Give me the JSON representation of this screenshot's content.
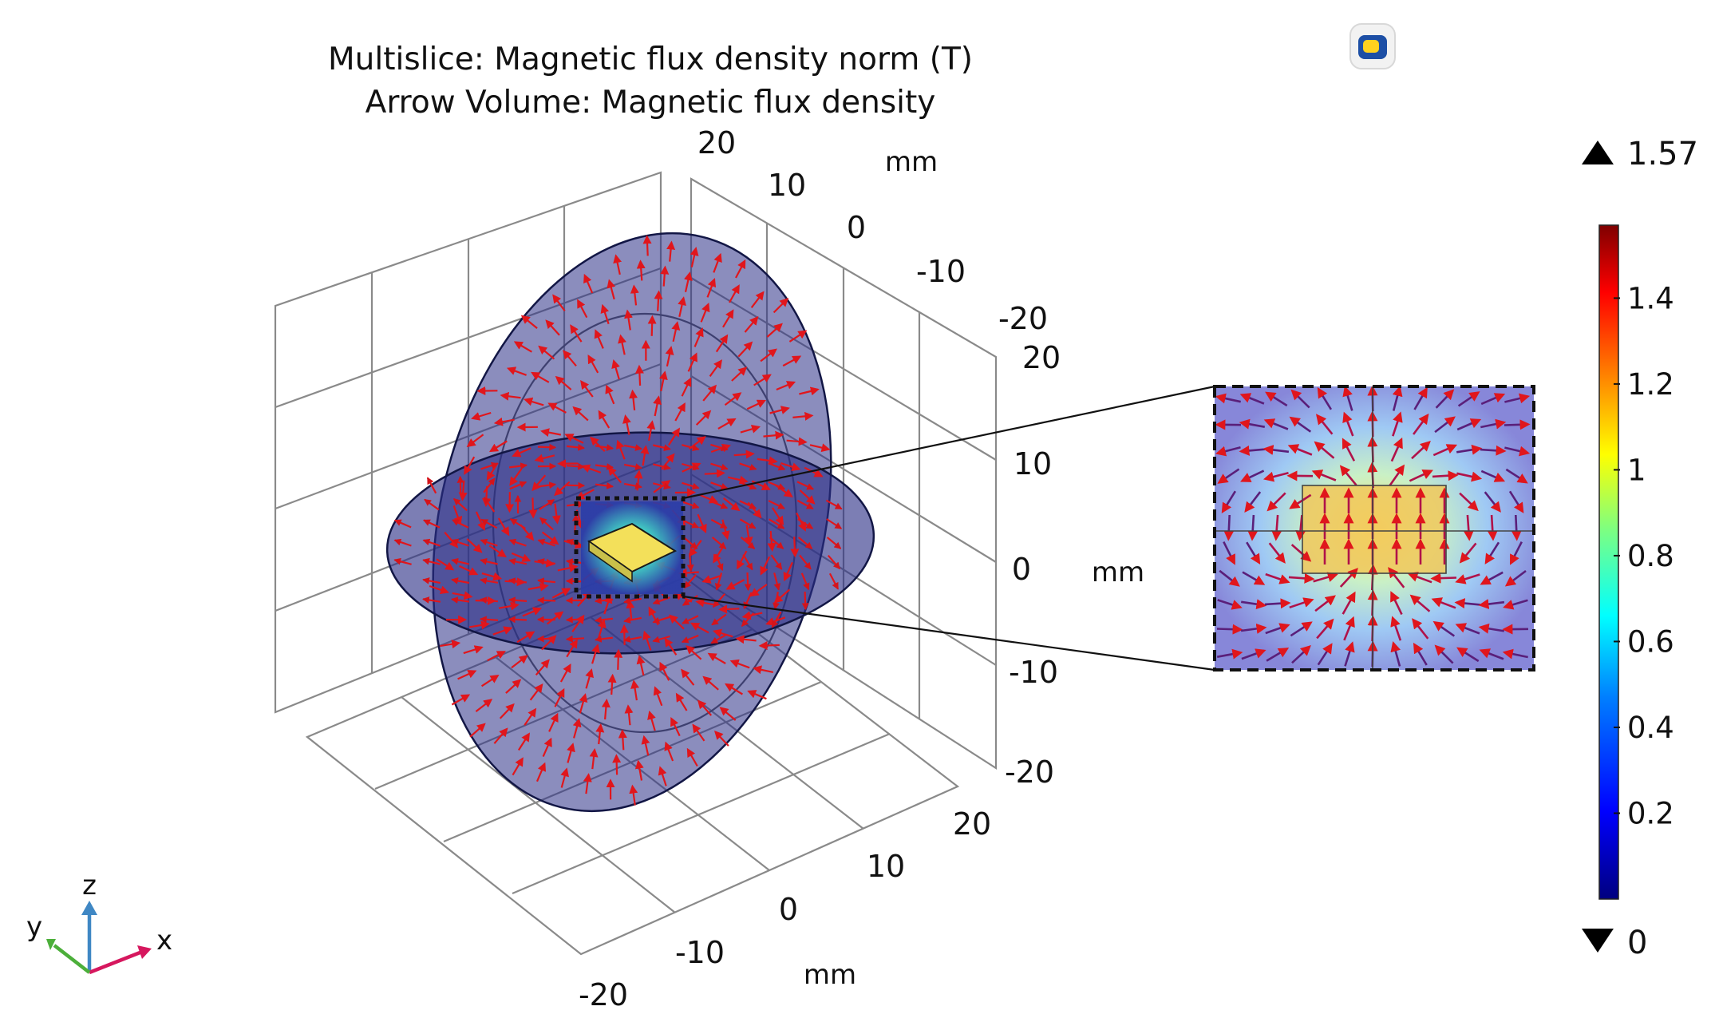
{
  "title": {
    "line1": "Multislice: Magnetic flux density norm (T)",
    "line2": "Arrow Volume: Magnetic flux density"
  },
  "axes": {
    "x": {
      "ticks": [
        "-20",
        "-10",
        "0",
        "10",
        "20"
      ],
      "unit": "mm"
    },
    "y": {
      "ticks": [
        "20",
        "10",
        "0",
        "-10",
        "-20"
      ],
      "unit": "mm"
    },
    "z": {
      "ticks": [
        "20",
        "10",
        "0",
        "-10",
        "-20"
      ],
      "unit": "mm"
    }
  },
  "colorbar": {
    "max_label": "1.57",
    "min_label": "0",
    "ticks": [
      "1.4",
      "1.2",
      "1",
      "0.8",
      "0.6",
      "0.4",
      "0.2"
    ],
    "colors": [
      "#00007f",
      "#0000ff",
      "#007fff",
      "#00ffff",
      "#7fff7f",
      "#ffff00",
      "#ff7f00",
      "#ff0000",
      "#7f0000"
    ]
  },
  "triad": {
    "x": "x",
    "y": "y",
    "z": "z"
  },
  "colors": {
    "slice_fill": "#2b2f86",
    "slice_stroke": "#121645",
    "arrow": "#e0161c",
    "grid": "#8a8a8a",
    "magnet": "#f3e05a",
    "triad_x": "#d6175e",
    "triad_y": "#4caf3a",
    "triad_z": "#3f87c4"
  },
  "icons": [
    "comsol-logo-icon",
    "max-triangle-icon",
    "min-triangle-icon"
  ],
  "chart_data": {
    "type": "heatmap",
    "title": "Multislice: Magnetic flux density norm (T)\nArrow Volume: Magnetic flux density",
    "quantity": "Magnetic flux density norm (T)",
    "units": {
      "x": "mm",
      "y": "mm",
      "z": "mm"
    },
    "xlim": [
      -20,
      20
    ],
    "ylim": [
      -20,
      20
    ],
    "zlim": [
      -20,
      20
    ],
    "color_range": [
      0,
      1.57
    ],
    "colormap": "rainbow",
    "slices": [
      "xy",
      "yz"
    ],
    "arrows": "magnetic flux density",
    "inset": "magnified view of magnet region",
    "grid": true
  }
}
